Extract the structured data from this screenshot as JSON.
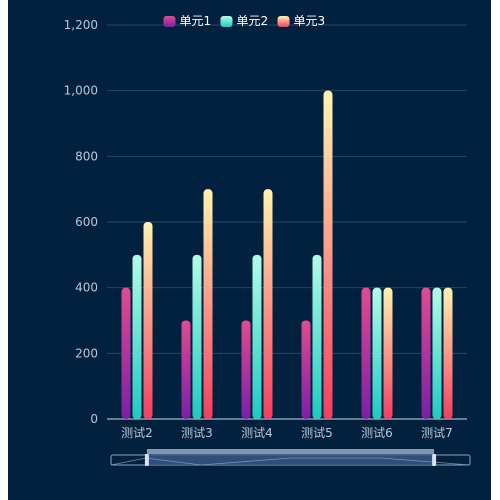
{
  "chart_data": {
    "type": "bar",
    "categories": [
      "测试2",
      "测试3",
      "测试4",
      "测试5",
      "测试6",
      "测试7"
    ],
    "series": [
      {
        "name": "单元1",
        "values": [
          400,
          300,
          300,
          300,
          400,
          400
        ],
        "gradient": [
          "#e24b8f",
          "#7b1fa8"
        ]
      },
      {
        "name": "单元2",
        "values": [
          500,
          500,
          500,
          500,
          400,
          400
        ],
        "gradient": [
          "#b4fbe6",
          "#1fc9c0"
        ]
      },
      {
        "name": "单元3",
        "values": [
          600,
          700,
          700,
          1000,
          400,
          400
        ],
        "gradient": [
          "#fff4b0",
          "#f43d60"
        ]
      }
    ],
    "ylim": [
      0,
      1200
    ],
    "yticks": [
      0,
      200,
      400,
      600,
      800,
      1000,
      1200
    ],
    "ytick_labels": [
      "0",
      "200",
      "400",
      "600",
      "800",
      "1,000",
      "1,200"
    ],
    "grid": true,
    "legend_position": "top-center",
    "title": "",
    "xlabel": "",
    "ylabel": ""
  },
  "colors": {
    "background": "#02213e",
    "grid": "#2a4660",
    "axis": "#c8d6e6",
    "tick_text": "#b9c6d6",
    "legend_text": "#ffffff",
    "slider_fill": "#3a5686",
    "slider_border": "#8fa3bd"
  },
  "data_zoom": {
    "start_fraction": 0.1,
    "end_fraction": 0.9
  }
}
